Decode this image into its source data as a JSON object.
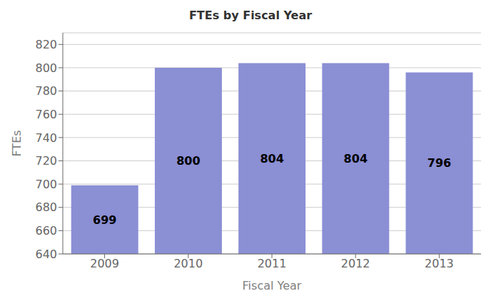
{
  "chart_data": {
    "type": "bar",
    "title": "FTEs by Fiscal Year",
    "xlabel": "Fiscal Year",
    "ylabel": "FTEs",
    "categories": [
      "2009",
      "2010",
      "2011",
      "2012",
      "2013"
    ],
    "values": [
      699,
      800,
      804,
      804,
      796
    ],
    "color": "#8B8FD4",
    "ylim": [
      640,
      830
    ],
    "yticks": [
      640,
      660,
      680,
      700,
      720,
      740,
      760,
      780,
      800,
      820
    ],
    "grid": true,
    "data_labels": true
  }
}
